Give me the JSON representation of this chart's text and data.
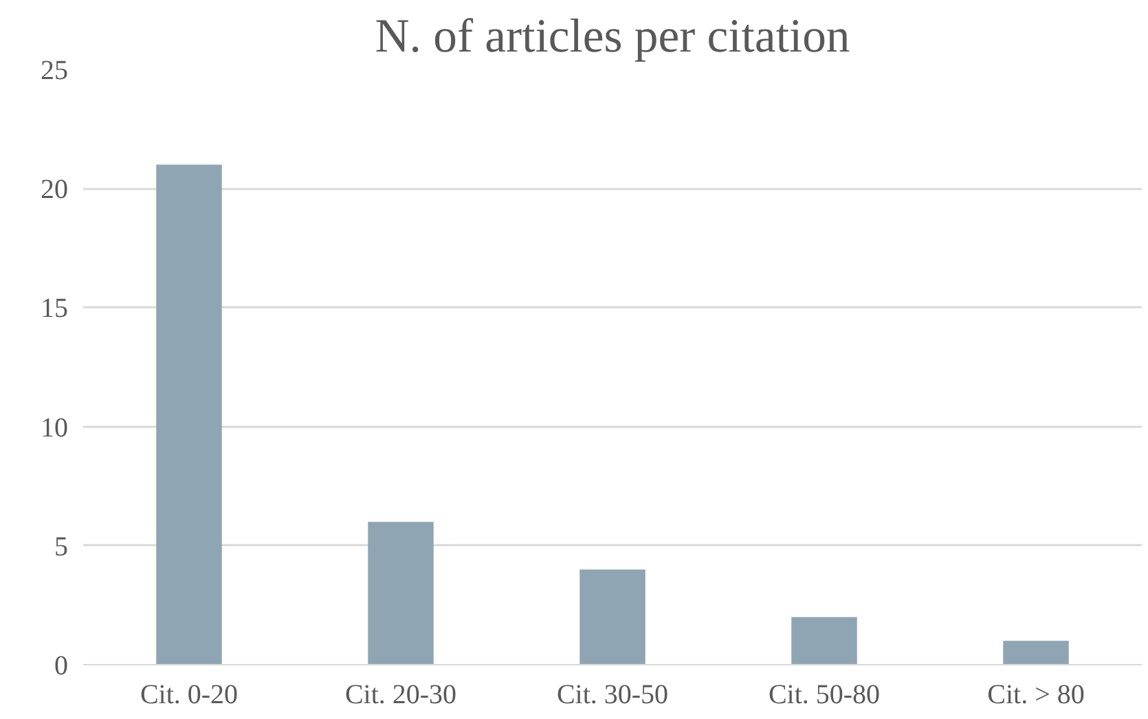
{
  "chart_data": {
    "type": "bar",
    "title": "N. of articles per citation",
    "categories": [
      "Cit. 0-20",
      "Cit. 20-30",
      "Cit. 30-50",
      "Cit. 50-80",
      "Cit. > 80"
    ],
    "values": [
      21,
      6,
      4,
      2,
      1
    ],
    "color": "#8fa5b4",
    "ylim": [
      0,
      25
    ],
    "yticks": [
      0,
      5,
      10,
      15,
      20,
      25
    ],
    "grid": "y",
    "legend": false
  }
}
